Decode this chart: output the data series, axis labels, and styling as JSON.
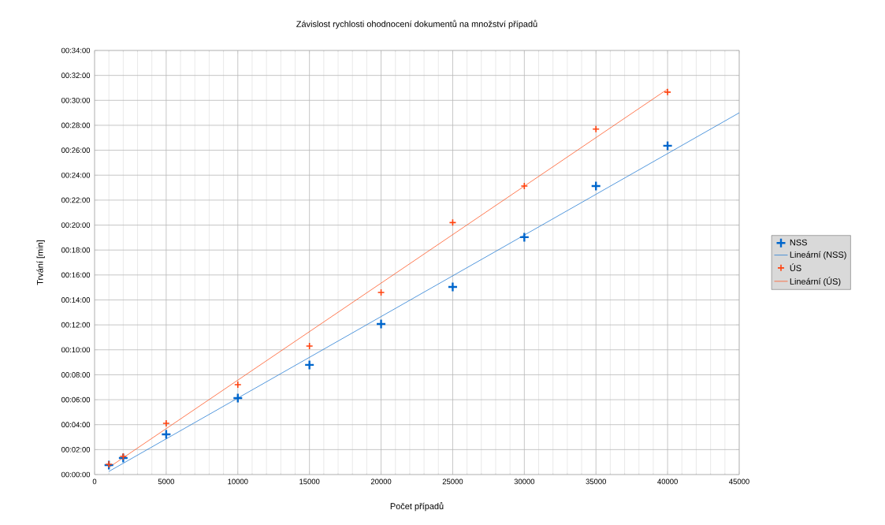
{
  "chart_data": {
    "type": "scatter",
    "title": "Závislost rychlosti ohodnocení dokumentů na množství případů",
    "xlabel": "Počet případů",
    "ylabel": "Trvání [min]",
    "x": [
      1000,
      2000,
      5000,
      10000,
      15000,
      20000,
      25000,
      30000,
      35000,
      40000
    ],
    "series": [
      {
        "name": "NSS",
        "color": "#0066cc",
        "marker": "cross",
        "values": [
          0.76,
          1.33,
          3.22,
          6.13,
          8.79,
          12.07,
          15.04,
          19.03,
          23.13,
          26.36
        ]
      },
      {
        "name": "Lineární (NSS)",
        "color": "#2a7fd4",
        "type": "line",
        "marker": "none",
        "x": [
          1000,
          45000
        ],
        "values": [
          0.25,
          29.0
        ]
      },
      {
        "name": "ÚS",
        "color": "#ff420e",
        "marker": "cross",
        "values": [
          0.82,
          1.45,
          4.11,
          7.2,
          10.3,
          14.6,
          20.2,
          23.13,
          27.7,
          30.66
        ]
      },
      {
        "name": "Lineární (ÚS)",
        "color": "#ff5a2a",
        "type": "line",
        "marker": "none",
        "x": [
          1000,
          40000
        ],
        "values": [
          0.57,
          30.9
        ]
      }
    ],
    "xlim": [
      0,
      45000
    ],
    "ylim": [
      0,
      34
    ],
    "xticks": [
      0,
      5000,
      10000,
      15000,
      20000,
      25000,
      30000,
      35000,
      40000,
      45000
    ],
    "yticks": [
      {
        "value": 0,
        "label": "00:00:00"
      },
      {
        "value": 2,
        "label": "00:02:00"
      },
      {
        "value": 4,
        "label": "00:04:00"
      },
      {
        "value": 6,
        "label": "00:06:00"
      },
      {
        "value": 8,
        "label": "00:08:00"
      },
      {
        "value": 10,
        "label": "00:10:00"
      },
      {
        "value": 12,
        "label": "00:12:00"
      },
      {
        "value": 14,
        "label": "00:14:00"
      },
      {
        "value": 16,
        "label": "00:16:00"
      },
      {
        "value": 18,
        "label": "00:18:00"
      },
      {
        "value": 20,
        "label": "00:20:00"
      },
      {
        "value": 22,
        "label": "00:22:00"
      },
      {
        "value": 24,
        "label": "00:24:00"
      },
      {
        "value": 26,
        "label": "00:26:00"
      },
      {
        "value": 28,
        "label": "00:28:00"
      },
      {
        "value": 30,
        "label": "00:30:00"
      },
      {
        "value": 32,
        "label": "00:32:00"
      },
      {
        "value": 34,
        "label": "00:34:00"
      }
    ],
    "grid": true,
    "legend": "right"
  }
}
